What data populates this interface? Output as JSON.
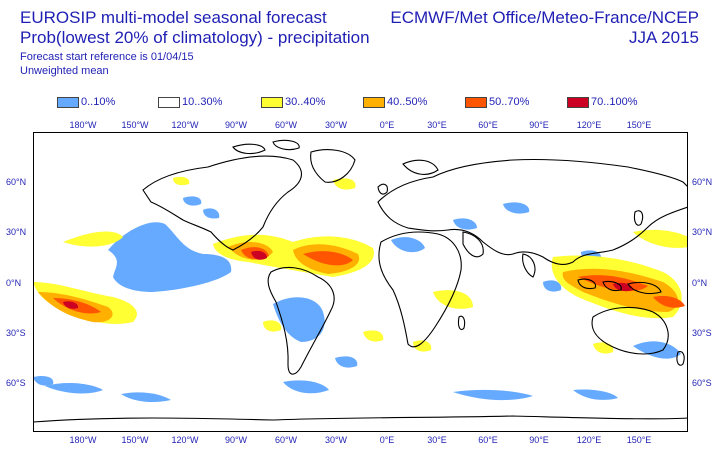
{
  "title": {
    "line1": "EUROSIP multi-model seasonal forecast",
    "line2": "Prob(lowest 20% of climatology) - precipitation",
    "line3": "Forecast start reference is 01/04/15",
    "line4": "Unweighted mean",
    "source": "ECMWF/Met Office/Meteo-France/NCEP",
    "season": "JJA 2015"
  },
  "legend": [
    {
      "label": "0..10%",
      "color": "#66aaff"
    },
    {
      "label": "10..30%",
      "color": "#ffffff"
    },
    {
      "label": "30..40%",
      "color": "#ffff33"
    },
    {
      "label": "40..50%",
      "color": "#ffb000"
    },
    {
      "label": "50..70%",
      "color": "#ff5500"
    },
    {
      "label": "70..100%",
      "color": "#cc0022"
    }
  ],
  "axes": {
    "lon_ticks": [
      "180°W",
      "150°W",
      "120°W",
      "90°W",
      "60°W",
      "30°W",
      "0°E",
      "30°E",
      "60°E",
      "90°E",
      "120°E",
      "150°E"
    ],
    "lat_ticks": [
      "60°N",
      "30°N",
      "0°N",
      "30°S",
      "60°S"
    ]
  }
}
